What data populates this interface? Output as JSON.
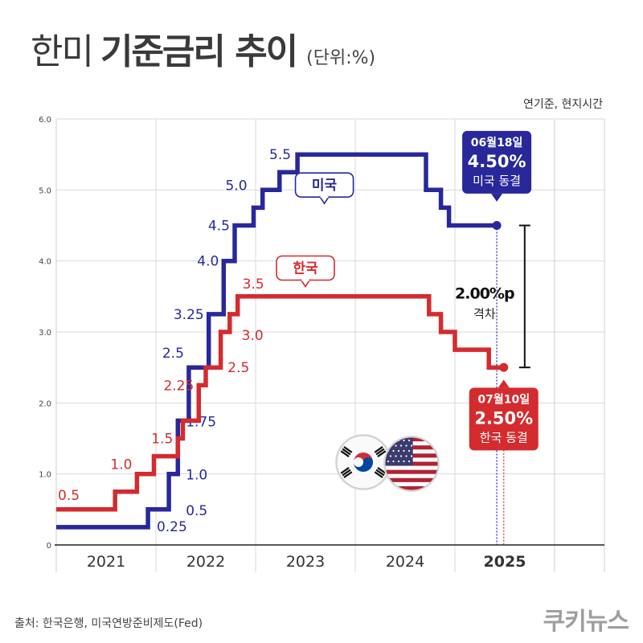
{
  "title": {
    "regular": "한미",
    "bold": "기준금리 추이",
    "unit": "(단위:%)"
  },
  "note": "연기준, 현지시간",
  "source": "출처: 한국은행, 미국연방준비제도(Fed)",
  "brand": "쿠키뉴스",
  "colors": {
    "us": "#28289b",
    "kr": "#d42b2f",
    "grid": "#d9d9d9",
    "axis": "#555555"
  },
  "chart_data": {
    "type": "line",
    "ylim": [
      0,
      6
    ],
    "yticks": [
      "0",
      "1.0",
      "2.0",
      "3.0",
      "4.0",
      "5.0",
      "6.0"
    ],
    "xlim": [
      2020.0,
      2025.5
    ],
    "x_ticks": [
      {
        "label": "2021",
        "x": 2020.5
      },
      {
        "label": "2022",
        "x": 2021.5
      },
      {
        "label": "2023",
        "x": 2022.5
      },
      {
        "label": "2024",
        "x": 2023.5
      },
      {
        "label": "2025",
        "x": 2024.5,
        "bold": true
      }
    ],
    "series": [
      {
        "name": "미국",
        "key": "us",
        "points": [
          [
            2020.0,
            0.25
          ],
          [
            2020.92,
            0.25
          ],
          [
            2020.92,
            0.5
          ],
          [
            2021.13,
            0.5
          ],
          [
            2021.13,
            1.0
          ],
          [
            2021.22,
            1.0
          ],
          [
            2021.22,
            1.75
          ],
          [
            2021.33,
            1.75
          ],
          [
            2021.33,
            2.5
          ],
          [
            2021.53,
            2.5
          ],
          [
            2021.53,
            3.25
          ],
          [
            2021.68,
            3.25
          ],
          [
            2021.68,
            4.0
          ],
          [
            2021.79,
            4.0
          ],
          [
            2021.79,
            4.5
          ],
          [
            2021.98,
            4.5
          ],
          [
            2021.98,
            4.75
          ],
          [
            2022.07,
            4.75
          ],
          [
            2022.07,
            5.0
          ],
          [
            2022.24,
            5.0
          ],
          [
            2022.24,
            5.25
          ],
          [
            2022.42,
            5.25
          ],
          [
            2022.42,
            5.5
          ],
          [
            2023.71,
            5.5
          ],
          [
            2023.71,
            5.0
          ],
          [
            2023.86,
            5.0
          ],
          [
            2023.86,
            4.75
          ],
          [
            2023.94,
            4.75
          ],
          [
            2023.94,
            4.5
          ],
          [
            2024.42,
            4.5
          ]
        ],
        "labels": [
          {
            "text": "0.25",
            "x": 2021.37,
            "y": 0.25,
            "dx": -26,
            "dy": 5,
            "anchor": "middle"
          },
          {
            "text": "0.5",
            "x": 2021.3,
            "y": 0.5,
            "dx": 0,
            "dy": 7,
            "anchor": "start"
          },
          {
            "text": "1.0",
            "x": 2021.3,
            "y": 1.0,
            "dx": 0,
            "dy": 7,
            "anchor": "start"
          },
          {
            "text": "1.75",
            "x": 2021.3,
            "y": 1.75,
            "dx": 0,
            "dy": 7,
            "anchor": "start"
          },
          {
            "text": "2.5",
            "x": 2021.33,
            "y": 2.5,
            "dx": -6,
            "dy": -12,
            "anchor": "end"
          },
          {
            "text": "3.25",
            "x": 2021.53,
            "y": 3.25,
            "dx": -6,
            "dy": 6,
            "anchor": "end"
          },
          {
            "text": "4.0",
            "x": 2021.68,
            "y": 4.0,
            "dx": -6,
            "dy": 6,
            "anchor": "end"
          },
          {
            "text": "4.5",
            "x": 2021.79,
            "y": 4.5,
            "dx": -6,
            "dy": 6,
            "anchor": "end"
          },
          {
            "text": "5.0",
            "x": 2021.98,
            "y": 5.0,
            "dx": -8,
            "dy": 0,
            "anchor": "end"
          },
          {
            "text": "5.5",
            "x": 2022.42,
            "y": 5.5,
            "dx": -8,
            "dy": 6,
            "anchor": "end"
          }
        ],
        "tag": {
          "text": "미국",
          "x": 2022.69,
          "y": 5.07
        },
        "end_marker": {
          "x": 2024.42,
          "y": 4.5
        },
        "callout": {
          "date": "06월18일",
          "rate": "4.50%",
          "status": "미국 동결",
          "x": 2024.42,
          "y": 5.48
        }
      },
      {
        "name": "한국",
        "key": "kr",
        "points": [
          [
            2020.0,
            0.5
          ],
          [
            2020.59,
            0.5
          ],
          [
            2020.59,
            0.75
          ],
          [
            2020.81,
            0.75
          ],
          [
            2020.81,
            1.0
          ],
          [
            2020.98,
            1.0
          ],
          [
            2020.98,
            1.25
          ],
          [
            2021.22,
            1.25
          ],
          [
            2021.22,
            1.5
          ],
          [
            2021.27,
            1.5
          ],
          [
            2021.27,
            1.75
          ],
          [
            2021.43,
            1.75
          ],
          [
            2021.43,
            2.25
          ],
          [
            2021.5,
            2.25
          ],
          [
            2021.5,
            2.5
          ],
          [
            2021.65,
            2.5
          ],
          [
            2021.65,
            3.0
          ],
          [
            2021.74,
            3.0
          ],
          [
            2021.74,
            3.25
          ],
          [
            2021.82,
            3.25
          ],
          [
            2021.82,
            3.5
          ],
          [
            2023.74,
            3.5
          ],
          [
            2023.74,
            3.25
          ],
          [
            2023.86,
            3.25
          ],
          [
            2023.86,
            3.0
          ],
          [
            2024.0,
            3.0
          ],
          [
            2024.0,
            2.75
          ],
          [
            2024.34,
            2.75
          ],
          [
            2024.34,
            2.5
          ],
          [
            2024.49,
            2.5
          ]
        ],
        "labels": [
          {
            "text": "0.5",
            "x": 2020.0,
            "y": 0.5,
            "dx": 2,
            "dy": -12,
            "anchor": "start"
          },
          {
            "text": "1.0",
            "x": 2020.81,
            "y": 1.0,
            "dx": -6,
            "dy": -6,
            "anchor": "end"
          },
          {
            "text": "1.5",
            "x": 2021.22,
            "y": 1.5,
            "dx": -6,
            "dy": 6,
            "anchor": "end"
          },
          {
            "text": "2.25",
            "x": 2021.43,
            "y": 2.25,
            "dx": -6,
            "dy": 6,
            "anchor": "end"
          },
          {
            "text": "2.5",
            "x": 2021.72,
            "y": 2.5,
            "dx": 0,
            "dy": 6,
            "anchor": "start"
          },
          {
            "text": "3.0",
            "x": 2021.86,
            "y": 3.0,
            "dx": 0,
            "dy": 10,
            "anchor": "start"
          },
          {
            "text": "3.5",
            "x": 2021.82,
            "y": 3.5,
            "dx": 6,
            "dy": -10,
            "anchor": "start"
          }
        ],
        "tag": {
          "text": "한국",
          "x": 2022.5,
          "y": 3.9
        },
        "end_marker": {
          "x": 2024.49,
          "y": 2.5
        },
        "callout": {
          "date": "07월10일",
          "rate": "2.50%",
          "status": "한국 동결",
          "x": 2024.49,
          "y": 2.0
        }
      }
    ],
    "gap": {
      "value": "2.00%p",
      "label": "격차",
      "from": 2.5,
      "to": 4.5,
      "x": 2024.7
    }
  }
}
